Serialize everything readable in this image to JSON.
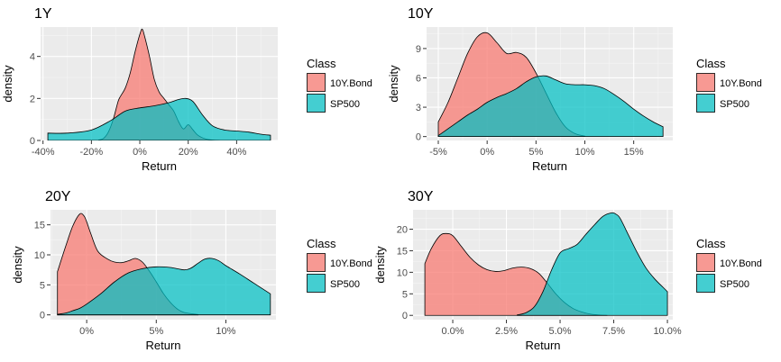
{
  "colors": {
    "panel_bg": "#EBEBEB",
    "grid_major": "#FFFFFF",
    "grid_minor": "#F5F5F5",
    "bond_fill": "#F8766D",
    "sp500_fill": "#00BFC4",
    "outline": "#000000",
    "axis_text": "#4D4D4D"
  },
  "legend": {
    "title": "Class",
    "entries": [
      {
        "name": "10Y.Bond",
        "color": "#F8766D"
      },
      {
        "name": "SP500",
        "color": "#00BFC4"
      }
    ]
  },
  "chart_data": [
    {
      "type": "area",
      "title": "1Y",
      "xlabel": "Return",
      "ylabel": "density",
      "xlim": [
        -0.41,
        0.57
      ],
      "ylim": [
        0,
        5.4
      ],
      "x_ticks": [
        -0.4,
        -0.2,
        0.0,
        0.2,
        0.4
      ],
      "x_tick_labels": [
        "-40%",
        "-20%",
        "0%",
        "20%",
        "40%"
      ],
      "y_ticks": [
        0,
        2,
        4
      ],
      "y_tick_labels": [
        "0",
        "2",
        "4"
      ],
      "series": [
        {
          "name": "10Y.Bond",
          "x": [
            -0.17,
            -0.15,
            -0.13,
            -0.11,
            -0.09,
            -0.08,
            -0.06,
            -0.04,
            -0.02,
            0.0,
            0.01,
            0.02,
            0.04,
            0.06,
            0.08,
            0.1,
            0.12,
            0.14,
            0.16,
            0.18,
            0.2,
            0.22,
            0.24,
            0.27,
            0.3,
            0.33
          ],
          "y": [
            0.02,
            0.1,
            0.4,
            1.0,
            1.85,
            2.1,
            2.5,
            3.2,
            4.2,
            5.05,
            5.3,
            4.95,
            4.0,
            2.9,
            2.3,
            2.0,
            1.7,
            1.4,
            0.9,
            0.55,
            0.75,
            0.5,
            0.25,
            0.08,
            0.02,
            0.0
          ]
        },
        {
          "name": "SP500",
          "x": [
            -0.38,
            -0.3,
            -0.2,
            -0.12,
            -0.06,
            0.0,
            0.06,
            0.12,
            0.16,
            0.19,
            0.22,
            0.26,
            0.3,
            0.35,
            0.4,
            0.45,
            0.5,
            0.54
          ],
          "y": [
            0.35,
            0.35,
            0.5,
            0.95,
            1.4,
            1.55,
            1.65,
            1.8,
            1.95,
            2.0,
            1.85,
            1.2,
            0.7,
            0.5,
            0.45,
            0.4,
            0.3,
            0.25
          ]
        }
      ]
    },
    {
      "type": "area",
      "title": "10Y",
      "xlabel": "Return",
      "ylabel": "density",
      "xlim": [
        -0.062,
        0.19
      ],
      "ylim": [
        -0.4,
        11.2
      ],
      "x_ticks": [
        -0.05,
        0.0,
        0.05,
        0.1,
        0.15
      ],
      "x_tick_labels": [
        "-5%",
        "0%",
        "5%",
        "10%",
        "15%"
      ],
      "y_ticks": [
        0,
        3,
        6,
        9
      ],
      "y_tick_labels": [
        "0",
        "3",
        "6",
        "9"
      ],
      "series": [
        {
          "name": "10Y.Bond",
          "x": [
            -0.05,
            -0.04,
            -0.03,
            -0.02,
            -0.01,
            0.0,
            0.01,
            0.02,
            0.03,
            0.04,
            0.05,
            0.06,
            0.07,
            0.08,
            0.09,
            0.1
          ],
          "y": [
            1.5,
            3.5,
            6.0,
            8.5,
            10.2,
            10.6,
            9.6,
            8.5,
            8.6,
            8.1,
            6.5,
            4.5,
            2.5,
            1.0,
            0.3,
            0.05
          ]
        },
        {
          "name": "SP500",
          "x": [
            -0.05,
            -0.04,
            -0.03,
            -0.02,
            -0.01,
            0.0,
            0.01,
            0.02,
            0.03,
            0.04,
            0.05,
            0.06,
            0.07,
            0.08,
            0.09,
            0.1,
            0.11,
            0.12,
            0.13,
            0.14,
            0.15,
            0.16,
            0.17,
            0.18
          ],
          "y": [
            0.1,
            0.8,
            1.5,
            2.2,
            2.8,
            3.5,
            4.0,
            4.4,
            4.9,
            5.6,
            6.1,
            6.2,
            5.8,
            5.4,
            5.3,
            5.3,
            5.2,
            4.9,
            4.3,
            3.6,
            2.8,
            2.1,
            1.5,
            1.0
          ]
        }
      ]
    },
    {
      "type": "area",
      "title": "20Y",
      "xlabel": "Return",
      "ylabel": "density",
      "xlim": [
        -0.026,
        0.136
      ],
      "ylim": [
        -0.8,
        17.5
      ],
      "x_ticks": [
        0.0,
        0.05,
        0.1
      ],
      "x_tick_labels": [
        "0%",
        "5%",
        "10%"
      ],
      "y_ticks": [
        0,
        5,
        10,
        15
      ],
      "y_tick_labels": [
        "0",
        "5",
        "10",
        "15"
      ],
      "series": [
        {
          "name": "10Y.Bond",
          "x": [
            -0.021,
            -0.015,
            -0.01,
            -0.005,
            -0.002,
            0.0,
            0.003,
            0.008,
            0.015,
            0.02,
            0.025,
            0.03,
            0.035,
            0.04,
            0.045,
            0.05,
            0.055,
            0.06,
            0.065,
            0.07,
            0.08
          ],
          "y": [
            7.2,
            11.5,
            14.8,
            16.8,
            16.5,
            15.5,
            13.5,
            10.6,
            9.3,
            8.8,
            8.7,
            9.0,
            9.4,
            8.8,
            7.3,
            5.5,
            3.6,
            2.1,
            1.0,
            0.4,
            0.05
          ]
        },
        {
          "name": "SP500",
          "x": [
            -0.021,
            -0.015,
            -0.01,
            -0.005,
            0.0,
            0.01,
            0.02,
            0.03,
            0.04,
            0.05,
            0.06,
            0.07,
            0.075,
            0.08,
            0.085,
            0.09,
            0.095,
            0.1,
            0.11,
            0.12,
            0.132
          ],
          "y": [
            0.1,
            0.3,
            0.7,
            1.1,
            1.8,
            3.5,
            5.5,
            7.0,
            7.7,
            8.0,
            7.9,
            7.5,
            7.8,
            8.6,
            9.3,
            9.4,
            9.0,
            8.2,
            6.8,
            5.3,
            3.5
          ]
        }
      ]
    },
    {
      "type": "area",
      "title": "30Y",
      "xlabel": "Return",
      "ylabel": "density",
      "xlim": [
        -0.0185,
        0.1025
      ],
      "ylim": [
        -1.0,
        24.5
      ],
      "x_ticks": [
        0.0,
        0.025,
        0.05,
        0.075,
        0.1
      ],
      "x_tick_labels": [
        "0.0%",
        "2.5%",
        "5.0%",
        "7.5%",
        "10.0%"
      ],
      "y_ticks": [
        0,
        5,
        10,
        15,
        20
      ],
      "y_tick_labels": [
        "0",
        "5",
        "10",
        "15",
        "20"
      ],
      "series": [
        {
          "name": "10Y.Bond",
          "x": [
            -0.013,
            -0.01,
            -0.006,
            -0.003,
            0.0,
            0.004,
            0.008,
            0.012,
            0.016,
            0.02,
            0.024,
            0.028,
            0.032,
            0.036,
            0.04,
            0.044,
            0.048,
            0.052,
            0.056,
            0.06,
            0.064,
            0.068,
            0.072
          ],
          "y": [
            12.0,
            15.5,
            18.5,
            19.0,
            18.5,
            16.0,
            13.5,
            11.7,
            10.6,
            10.2,
            10.4,
            11.0,
            11.2,
            10.9,
            9.8,
            7.5,
            5.0,
            3.0,
            1.6,
            0.8,
            0.3,
            0.1,
            0.0
          ]
        },
        {
          "name": "SP500",
          "x": [
            0.03,
            0.034,
            0.038,
            0.042,
            0.046,
            0.05,
            0.054,
            0.058,
            0.062,
            0.066,
            0.07,
            0.074,
            0.076,
            0.078,
            0.082,
            0.086,
            0.09,
            0.094,
            0.098,
            0.1
          ],
          "y": [
            0.1,
            0.6,
            2.0,
            5.5,
            10.5,
            14.5,
            15.5,
            16.5,
            18.8,
            21.0,
            23.0,
            23.8,
            23.5,
            22.5,
            18.5,
            14.5,
            11.0,
            8.5,
            6.5,
            5.5
          ]
        }
      ]
    }
  ]
}
